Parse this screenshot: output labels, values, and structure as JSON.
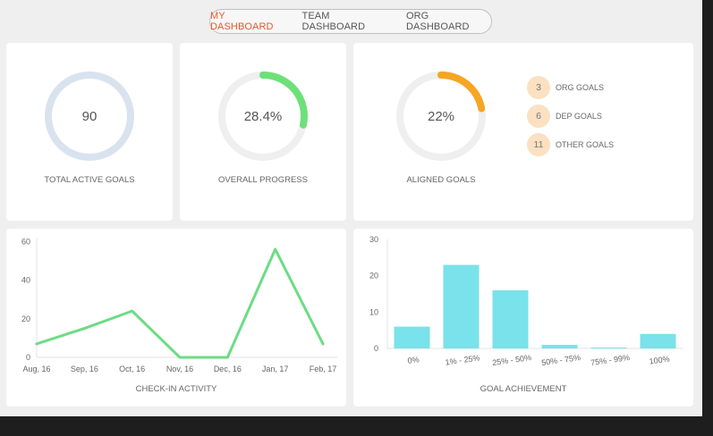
{
  "tabs": [
    {
      "label": "MY DASHBOARD",
      "active": true
    },
    {
      "label": "TEAM DASHBOARD",
      "active": false
    },
    {
      "label": "ORG DASHBOARD",
      "active": false
    }
  ],
  "stats": {
    "total": {
      "value": "90",
      "caption": "TOTAL ACTIVE GOALS"
    },
    "progress": {
      "value": "28.4%",
      "fraction": 0.284,
      "caption": "OVERALL PROGRESS"
    },
    "aligned": {
      "value": "22%",
      "fraction": 0.22,
      "caption": "ALIGNED GOALS"
    }
  },
  "aligned_breakdown": [
    {
      "count": "3",
      "label": "ORG GOALS"
    },
    {
      "count": "6",
      "label": "DEP GOALS"
    },
    {
      "count": "11",
      "label": "OTHER GOALS"
    }
  ],
  "colors": {
    "accent": "#e8572a",
    "progress": "#6ee07a",
    "aligned": "#f5a623",
    "total_ring": "#d9e3ef",
    "track": "#efefef",
    "line": "#6ddc84",
    "bar": "#79e2ea"
  },
  "chart_data": [
    {
      "type": "line",
      "title": "CHECK-IN ACTIVITY",
      "categories": [
        "Aug, 16",
        "Sep, 16",
        "Oct, 16",
        "Nov, 16",
        "Dec, 16",
        "Jan, 17",
        "Feb, 17"
      ],
      "values": [
        7,
        15,
        24,
        0,
        0,
        56,
        7
      ],
      "yticks": [
        0,
        20,
        40,
        60
      ],
      "ylim": [
        0,
        62
      ],
      "grid": false
    },
    {
      "type": "bar",
      "title": "GOAL ACHIEVEMENT",
      "categories": [
        "0%",
        "1% - 25%",
        "25% - 50%",
        "50% - 75%",
        "75% - 99%",
        "100%"
      ],
      "values": [
        6,
        23,
        16,
        1,
        0,
        4
      ],
      "yticks": [
        0,
        10,
        20,
        30
      ],
      "ylim": [
        0,
        30
      ],
      "grid": false
    }
  ]
}
